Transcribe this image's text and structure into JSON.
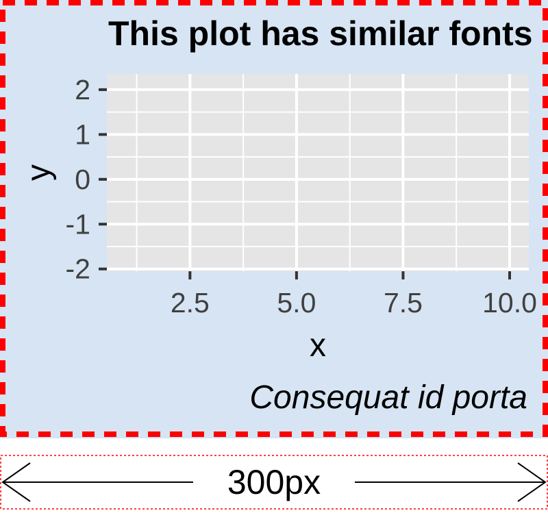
{
  "chart_data": {
    "type": "scatter",
    "title": "This plot has similar fonts",
    "caption": "Consequat id porta",
    "xlabel": "x",
    "ylabel": "y",
    "xlim": [
      0.55,
      10.45
    ],
    "ylim": [
      -2.05,
      2.35
    ],
    "x_ticks": [
      2.5,
      5.0,
      7.5,
      10.0
    ],
    "x_tick_labels": [
      "2.5",
      "5.0",
      "7.5",
      "10.0"
    ],
    "y_ticks": [
      -2,
      -1,
      0,
      1,
      2
    ],
    "y_tick_labels": [
      "-2",
      "-1",
      "0",
      "1",
      "2"
    ],
    "points": [],
    "grid": true,
    "colors": {
      "panel_background": "#e5e5e5",
      "plot_background": "#d6e4f3",
      "grid": "#ffffff",
      "border": "#ff0000"
    }
  },
  "annotation": {
    "width_label": "300px"
  }
}
